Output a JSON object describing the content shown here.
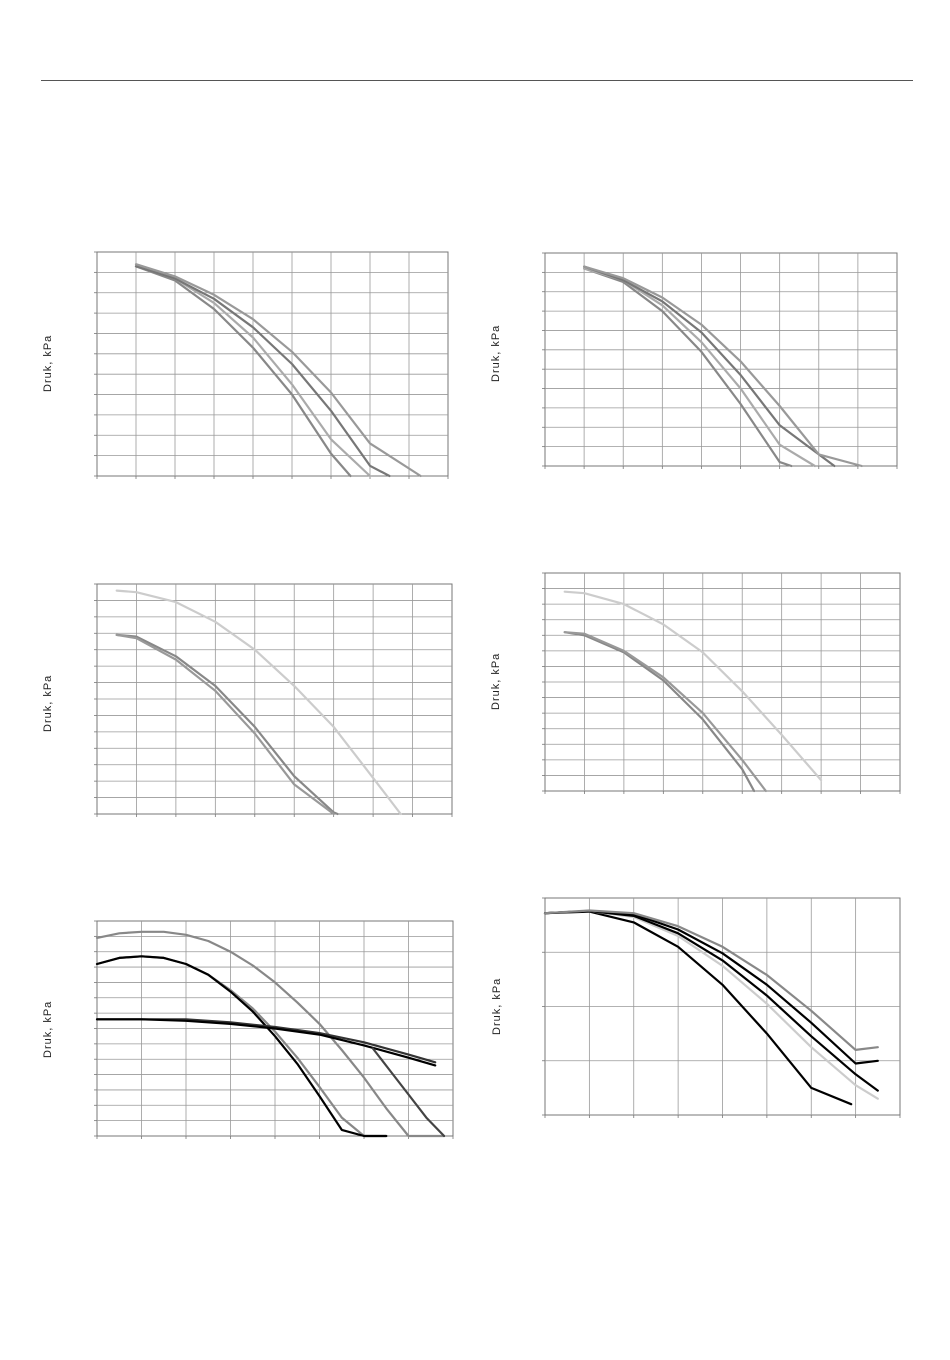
{
  "page": {
    "header_rule": true
  },
  "chart_data": [
    {
      "type": "line",
      "ylabel": "Druk, kPa",
      "grid": true,
      "xlim": [
        0,
        9
      ],
      "ylim": [
        0,
        11
      ],
      "series": [
        {
          "color": "#888888",
          "x": [
            1,
            2,
            3,
            4,
            5,
            6,
            6.5
          ],
          "y": [
            10.3,
            9.6,
            8.2,
            6.3,
            4.0,
            1.1,
            0
          ]
        },
        {
          "color": "#aaaaaa",
          "x": [
            1,
            2,
            3,
            4,
            5,
            6,
            7
          ],
          "y": [
            10.3,
            9.7,
            8.5,
            6.8,
            4.5,
            1.8,
            0
          ]
        },
        {
          "color": "#777777",
          "x": [
            1,
            2,
            3,
            4,
            5,
            6,
            7,
            7.5
          ],
          "y": [
            10.3,
            9.7,
            8.7,
            7.3,
            5.5,
            3.2,
            0.5,
            0
          ]
        },
        {
          "color": "#999999",
          "x": [
            1,
            2,
            3,
            4,
            5,
            6,
            7,
            8.3
          ],
          "y": [
            10.4,
            9.8,
            8.9,
            7.7,
            6.1,
            4.1,
            1.6,
            0
          ]
        }
      ]
    },
    {
      "type": "line",
      "ylabel": "Druk, kPa",
      "grid": true,
      "xlim": [
        0,
        9
      ],
      "ylim": [
        0,
        11
      ],
      "series": [
        {
          "color": "#888888",
          "x": [
            1,
            2,
            3,
            4,
            5,
            6,
            6.3
          ],
          "y": [
            10.2,
            9.5,
            8.0,
            5.9,
            3.2,
            0.2,
            0
          ]
        },
        {
          "color": "#aaaaaa",
          "x": [
            1,
            2,
            3,
            4,
            5,
            6,
            6.9
          ],
          "y": [
            10.2,
            9.6,
            8.3,
            6.4,
            4.0,
            1.1,
            0
          ]
        },
        {
          "color": "#777777",
          "x": [
            1,
            2,
            3,
            4,
            5,
            6,
            7.4
          ],
          "y": [
            10.3,
            9.6,
            8.5,
            6.9,
            4.7,
            2.1,
            0
          ]
        },
        {
          "color": "#999999",
          "x": [
            1,
            2,
            3,
            4,
            5,
            6,
            7,
            8.1
          ],
          "y": [
            10.3,
            9.7,
            8.7,
            7.3,
            5.4,
            3.1,
            0.6,
            0
          ]
        }
      ]
    },
    {
      "type": "line",
      "ylabel": "Druk, kPa",
      "grid": true,
      "xlim": [
        0,
        9
      ],
      "ylim": [
        0,
        14
      ],
      "series": [
        {
          "color": "#cccccc",
          "x": [
            0.5,
            1,
            2,
            3,
            4,
            5,
            6,
            7,
            7.7
          ],
          "y": [
            13.6,
            13.5,
            12.9,
            11.7,
            10.0,
            7.8,
            5.3,
            2.2,
            0
          ]
        },
        {
          "color": "#888888",
          "x": [
            0.5,
            1,
            2,
            3,
            4,
            5,
            6,
            6.1
          ],
          "y": [
            10.9,
            10.8,
            9.6,
            7.8,
            5.3,
            2.3,
            0.1,
            0
          ]
        },
        {
          "color": "#999999",
          "x": [
            0.5,
            1,
            2,
            3,
            4,
            5,
            6
          ],
          "y": [
            10.9,
            10.7,
            9.4,
            7.5,
            4.9,
            1.8,
            0
          ]
        }
      ]
    },
    {
      "type": "line",
      "ylabel": "Druk, kPa",
      "grid": true,
      "xlim": [
        0,
        9
      ],
      "ylim": [
        0,
        14
      ],
      "series": [
        {
          "color": "#cccccc",
          "x": [
            0.5,
            1,
            2,
            3,
            4,
            5,
            6,
            7
          ],
          "y": [
            12.8,
            12.7,
            12.0,
            10.7,
            8.9,
            6.4,
            3.6,
            0.7
          ]
        },
        {
          "color": "#888888",
          "x": [
            0.5,
            1,
            2,
            3,
            4,
            5,
            5.3
          ],
          "y": [
            10.2,
            10.0,
            8.9,
            7.1,
            4.6,
            1.4,
            0
          ]
        },
        {
          "color": "#999999",
          "x": [
            0.5,
            1,
            2,
            3,
            4,
            5,
            5.6
          ],
          "y": [
            10.2,
            10.1,
            9.0,
            7.3,
            5.0,
            2.0,
            0
          ]
        }
      ]
    },
    {
      "type": "line",
      "ylabel": "Druk, kPa",
      "grid": true,
      "xlim": [
        0,
        8
      ],
      "ylim": [
        0,
        14
      ],
      "series": [
        {
          "color": "#888888",
          "x": [
            0,
            0.5,
            1,
            1.5,
            2,
            2.5,
            3,
            3.5,
            4,
            4.5,
            5,
            5.5,
            6,
            6.5,
            7,
            7.5,
            7.8
          ],
          "y": [
            12.9,
            13.2,
            13.3,
            13.3,
            13.1,
            12.7,
            12.0,
            11.1,
            10.0,
            8.7,
            7.3,
            5.6,
            3.8,
            1.8,
            0,
            0,
            0
          ]
        },
        {
          "color": "#888888",
          "x": [
            0,
            0.5,
            1,
            1.5,
            2,
            2.5,
            3,
            3.5,
            4,
            4.5,
            5,
            5.5,
            6,
            6.5
          ],
          "y": [
            11.2,
            11.6,
            11.7,
            11.6,
            11.2,
            10.5,
            9.5,
            8.3,
            6.8,
            5.1,
            3.2,
            1.2,
            0,
            0
          ]
        },
        {
          "color": "#000000",
          "x": [
            0,
            0.5,
            1,
            1.5,
            2,
            2.5,
            3,
            3.5,
            4,
            4.5,
            5,
            5.5,
            6,
            6.5
          ],
          "y": [
            11.2,
            11.6,
            11.7,
            11.6,
            11.2,
            10.5,
            9.4,
            8.1,
            6.5,
            4.7,
            2.6,
            0.4,
            0,
            0
          ]
        },
        {
          "color": "#333333",
          "x": [
            0,
            1,
            2,
            3,
            4,
            5,
            6,
            7,
            7.6
          ],
          "y": [
            7.6,
            7.6,
            7.6,
            7.4,
            7.1,
            6.7,
            6.1,
            5.3,
            4.8
          ]
        },
        {
          "color": "#000000",
          "x": [
            0,
            1,
            2,
            3,
            4,
            5,
            6,
            7,
            7.6
          ],
          "y": [
            7.6,
            7.6,
            7.5,
            7.3,
            7.0,
            6.6,
            5.9,
            5.1,
            4.6
          ]
        },
        {
          "color": "#444444",
          "x": [
            6.2,
            6.6,
            7,
            7.4,
            7.8
          ],
          "y": [
            5.7,
            4.2,
            2.7,
            1.2,
            0
          ]
        }
      ]
    },
    {
      "type": "line",
      "ylabel": "Druk, kPa",
      "grid": true,
      "xlim": [
        0,
        8
      ],
      "ylim": [
        0,
        4
      ],
      "series": [
        {
          "color": "#000000",
          "x": [
            0,
            1,
            2,
            3,
            4,
            5,
            6,
            6.9
          ],
          "y": [
            3.72,
            3.75,
            3.55,
            3.1,
            2.4,
            1.5,
            0.5,
            0.2
          ]
        },
        {
          "color": "#cccccc",
          "x": [
            0,
            1,
            2,
            3,
            4,
            5,
            6,
            7,
            7.5
          ],
          "y": [
            3.72,
            3.76,
            3.65,
            3.3,
            2.75,
            2.05,
            1.25,
            0.55,
            0.3
          ]
        },
        {
          "color": "#000000",
          "x": [
            0,
            1,
            2,
            3,
            4,
            5,
            6,
            7,
            7.5
          ],
          "y": [
            3.72,
            3.76,
            3.67,
            3.35,
            2.85,
            2.2,
            1.45,
            0.75,
            0.45
          ]
        },
        {
          "color": "#000000",
          "x": [
            0,
            1,
            2,
            3,
            4,
            5,
            6,
            7,
            7.5
          ],
          "y": [
            3.72,
            3.76,
            3.7,
            3.42,
            2.98,
            2.4,
            1.7,
            0.95,
            1.0
          ]
        },
        {
          "color": "#888888",
          "x": [
            0,
            1,
            2,
            3,
            4,
            5,
            6,
            7,
            7.5
          ],
          "y": [
            3.72,
            3.77,
            3.72,
            3.48,
            3.1,
            2.58,
            1.92,
            1.2,
            1.25
          ]
        }
      ]
    }
  ]
}
